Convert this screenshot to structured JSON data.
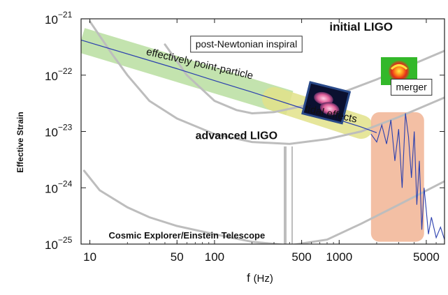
{
  "chart_data": {
    "type": "line",
    "title": "",
    "xlabel": "f",
    "xlabel_unit": "(Hz)",
    "ylabel": "Effective Strain",
    "xscale": "log",
    "yscale": "log",
    "xlim": [
      8.5,
      7000
    ],
    "ylim": [
      1e-25,
      1e-21
    ],
    "x_ticks": [
      {
        "value": 10,
        "label": "10"
      },
      {
        "value": 50,
        "label": "50"
      },
      {
        "value": 100,
        "label": "100"
      },
      {
        "value": 500,
        "label": "500"
      },
      {
        "value": 1000,
        "label": "1000"
      },
      {
        "value": 5000,
        "label": "5000"
      }
    ],
    "y_ticks": [
      {
        "value": 1e-21,
        "base": "10",
        "exp": "−21"
      },
      {
        "value": 1e-22,
        "base": "10",
        "exp": "−22"
      },
      {
        "value": 1e-23,
        "base": "10",
        "exp": "−23"
      },
      {
        "value": 1e-24,
        "base": "10",
        "exp": "−24"
      },
      {
        "value": 1e-25,
        "base": "10",
        "exp": "−25"
      }
    ],
    "colors": {
      "detector_curve": "#bdbdbd",
      "signal": "#2a3fae",
      "inspiral_band": "#b9dfa0",
      "tidal_band": "#e2e28a",
      "merger_band": "#f2b89a"
    },
    "series": [
      {
        "name": "initial LIGO",
        "x": [
          40,
          60,
          100,
          150,
          200,
          300,
          500,
          1000,
          2000,
          4000,
          7000
        ],
        "y": [
          3.5e-22,
          1e-22,
          3.5e-23,
          2.4e-23,
          2.1e-23,
          2.2e-23,
          2.8e-23,
          4.7e-23,
          8.4e-23,
          1.6e-22,
          2.7e-22
        ]
      },
      {
        "name": "advanced LIGO",
        "x": [
          10,
          15,
          20,
          30,
          50,
          100,
          200,
          400,
          800,
          1500,
          3000,
          7000
        ],
        "y": [
          9e-22,
          2.4e-22,
          1e-22,
          3.5e-23,
          1.7e-23,
          9e-24,
          6.5e-24,
          6e-24,
          7.3e-24,
          1e-23,
          1.8e-23,
          4e-23
        ]
      },
      {
        "name": "Cosmic Explorer/Einstein Telescope",
        "x": [
          9,
          12,
          20,
          30,
          50,
          100,
          200,
          400,
          800,
          1500,
          3000,
          7000
        ],
        "y": [
          2e-24,
          9e-25,
          4.5e-25,
          3e-25,
          2.1e-25,
          1.5e-25,
          1.1e-25,
          9.5e-26,
          1.2e-25,
          2.3e-25,
          5e-25,
          1.3e-24
        ]
      },
      {
        "name": "post-Newtonian inspiral",
        "x": [
          8.5,
          50,
          100,
          200,
          500,
          1000,
          1500,
          2000
        ],
        "y": [
          4.2e-22,
          1.3e-22,
          8e-23,
          5e-23,
          2.6e-23,
          1.6e-23,
          1.2e-23,
          9.5e-24
        ]
      },
      {
        "name": "merger waveform",
        "x": [
          1800,
          2000,
          2200,
          2400,
          2600,
          2800,
          3000,
          3200,
          3400,
          3600,
          3800,
          4000,
          4200,
          4400,
          4600,
          4800,
          5000,
          5200,
          5500,
          6000,
          6500,
          7000
        ],
        "y": [
          9e-24,
          6.5e-24,
          1.3e-23,
          6e-24,
          1.6e-23,
          3e-24,
          1.1e-23,
          1e-24,
          2.1e-23,
          8e-24,
          1.5e-24,
          1e-23,
          5e-25,
          3e-24,
          1.8e-25,
          1e-24,
          4e-25,
          1.5e-25,
          3e-25,
          1.3e-25,
          2e-25,
          1.2e-25
        ]
      }
    ],
    "bands": [
      {
        "name": "effectively point-particle",
        "x": [
          8.5,
          400
        ],
        "y_center": [
          4.2e-22,
          3.2e-23
        ],
        "color": "#b9dfa0"
      },
      {
        "name": "tidal effects",
        "x": [
          300,
          1500
        ],
        "y_center": [
          3.8e-23,
          1.2e-23
        ],
        "color": "#e2e28a"
      },
      {
        "name": "merger",
        "x": [
          1800,
          4800
        ],
        "y": [
          1.1e-25,
          2.2e-23
        ],
        "color": "#f2b89a"
      }
    ],
    "annotations": [
      {
        "id": "initial",
        "text": "initial LIGO",
        "style": "bold",
        "x": 1500,
        "y": 6.2e-22
      },
      {
        "id": "advanced",
        "text": "advanced LIGO",
        "style": "bold",
        "x": 150,
        "y": 7.3e-24
      },
      {
        "id": "cosmic",
        "text": "Cosmic Explorer/Einstein Telescope",
        "style": "bold",
        "x": 60,
        "y": 1.25e-25
      },
      {
        "id": "pn",
        "text": "post-Newtonian inspiral",
        "style": "boxed",
        "x": 180,
        "y": 3.6e-22
      },
      {
        "id": "merger",
        "text": "merger",
        "style": "boxed",
        "x": 3800,
        "y": 6.2e-23
      }
    ],
    "rotated_labels": [
      {
        "id": "point",
        "text": "effectively point-particle",
        "x": 75,
        "y": 1.4e-22,
        "angle": 13
      },
      {
        "id": "tidal",
        "text": "tidal effects",
        "x": 850,
        "y": 1.8e-23,
        "angle": 12
      }
    ]
  }
}
